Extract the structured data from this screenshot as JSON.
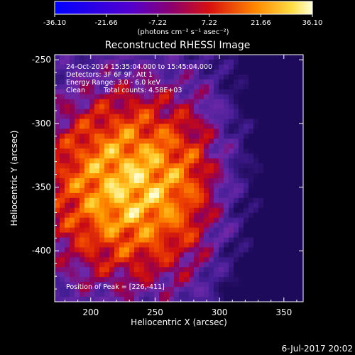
{
  "colorbar": {
    "ticks": [
      "-36.10",
      "-21.66",
      "-7.22",
      "7.22",
      "21.66",
      "36.10"
    ],
    "unit_label": "(photons cm⁻² s⁻¹ asec⁻²)",
    "range": [
      -36.1,
      36.1
    ]
  },
  "chart_data": {
    "type": "heatmap",
    "title": "Reconstructed RHESSI Image",
    "xlabel": "Heliocentric X (arcsec)",
    "ylabel": "Heliocentric Y (arcsec)",
    "xlim": [
      172,
      365
    ],
    "ylim": [
      -440,
      -246
    ],
    "x_ticks": [
      "200",
      "250",
      "300",
      "350"
    ],
    "y_ticks": [
      "-250",
      "-300",
      "-350",
      "-400"
    ],
    "x_tick_values": [
      200,
      250,
      300,
      350
    ],
    "y_tick_values": [
      -250,
      -300,
      -350,
      -400
    ],
    "peak_position": [
      226,
      -411
    ],
    "colormap": "hot-to-violet",
    "annotations": {
      "time": "24-Oct-2014 15:35:04.000 to 15:45:04.000",
      "detectors": "Detectors: 3F 6F 9F, Att 1",
      "energy": "Energy Range: 3.0 - 6.0 keV",
      "clean": "Clean",
      "counts": "Total counts: 4.58E+03",
      "peak": "Position of Peak = [226,-411]"
    }
  },
  "footer": {
    "date": "6-Jul-2017 20:02"
  }
}
